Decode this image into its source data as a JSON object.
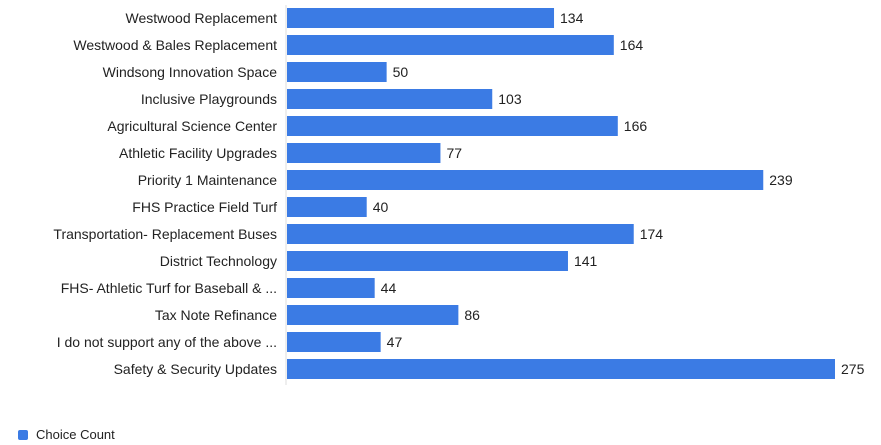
{
  "chart_data": {
    "type": "bar",
    "orientation": "horizontal",
    "categories": [
      "Westwood Replacement",
      "Westwood & Bales Replacement",
      "Windsong Innovation Space",
      "Inclusive Playgrounds",
      "Agricultural Science Center",
      "Athletic Facility Upgrades",
      "Priority 1 Maintenance",
      "FHS Practice Field Turf",
      "Transportation- Replacement Buses",
      "District Technology",
      "FHS- Athletic Turf for Baseball & ...",
      "Tax Note Refinance",
      "I do not support any of the above ...",
      "Safety & Security Updates"
    ],
    "series": [
      {
        "name": "Choice Count",
        "values": [
          134,
          164,
          50,
          103,
          166,
          77,
          239,
          40,
          174,
          141,
          44,
          86,
          47,
          275
        ]
      }
    ],
    "xlim": [
      0,
      275
    ],
    "grid": false,
    "legend": "bottom-left",
    "bar_color": "#3b7be4"
  },
  "legend": {
    "label": "Choice Count"
  }
}
